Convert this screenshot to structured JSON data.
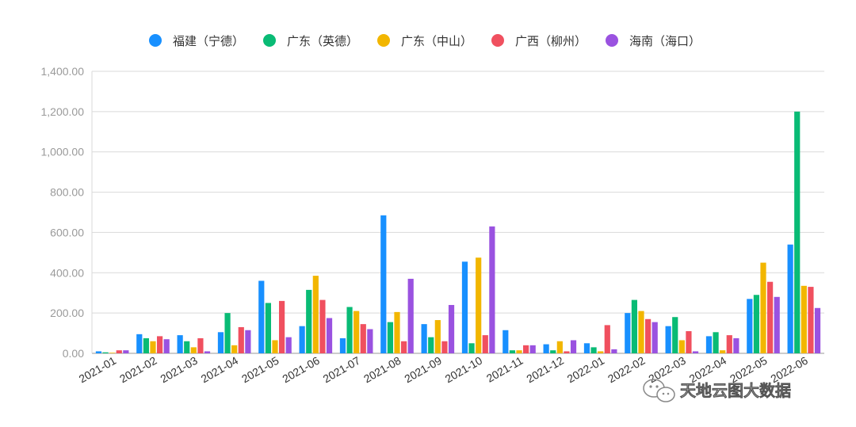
{
  "chart_data": {
    "type": "bar",
    "categories": [
      "2021-01",
      "2021-02",
      "2021-03",
      "2021-04",
      "2021-05",
      "2021-06",
      "2021-07",
      "2021-08",
      "2021-09",
      "2021-10",
      "2021-11",
      "2021-12",
      "2022-01",
      "2022-02",
      "2022-03",
      "2022-04",
      "2022-05",
      "2022-06"
    ],
    "series": [
      {
        "name": "福建（宁德）",
        "color": "#1890ff",
        "values": [
          10,
          95,
          90,
          105,
          360,
          135,
          75,
          685,
          145,
          455,
          115,
          45,
          50,
          200,
          135,
          85,
          270,
          540
        ]
      },
      {
        "name": "广东（英德）",
        "color": "#09bb75",
        "values": [
          5,
          75,
          60,
          200,
          250,
          315,
          230,
          155,
          80,
          50,
          15,
          15,
          30,
          265,
          180,
          105,
          290,
          1200
        ]
      },
      {
        "name": "广东（中山）",
        "color": "#f2b600",
        "values": [
          3,
          60,
          30,
          40,
          65,
          385,
          210,
          205,
          165,
          475,
          15,
          60,
          10,
          210,
          65,
          15,
          450,
          335
        ]
      },
      {
        "name": "广西（柳州）",
        "color": "#f0505f",
        "values": [
          15,
          85,
          75,
          130,
          260,
          265,
          145,
          60,
          60,
          90,
          40,
          10,
          140,
          170,
          110,
          90,
          355,
          330
        ]
      },
      {
        "name": "海南（海口）",
        "color": "#9a52e0",
        "values": [
          15,
          70,
          10,
          115,
          80,
          175,
          120,
          370,
          240,
          630,
          40,
          65,
          20,
          155,
          10,
          75,
          280,
          225
        ]
      }
    ],
    "yticks": [
      "0.00",
      "200.00",
      "400.00",
      "600.00",
      "800.00",
      "1,000.00",
      "1,200.00",
      "1,400.00"
    ],
    "ylim": [
      0,
      1400
    ],
    "grid": true,
    "legend_position": "top-center",
    "title": "",
    "xlabel": "",
    "ylabel": ""
  },
  "watermark": {
    "text": "天地云图大数据",
    "icon": "wechat-icon"
  }
}
